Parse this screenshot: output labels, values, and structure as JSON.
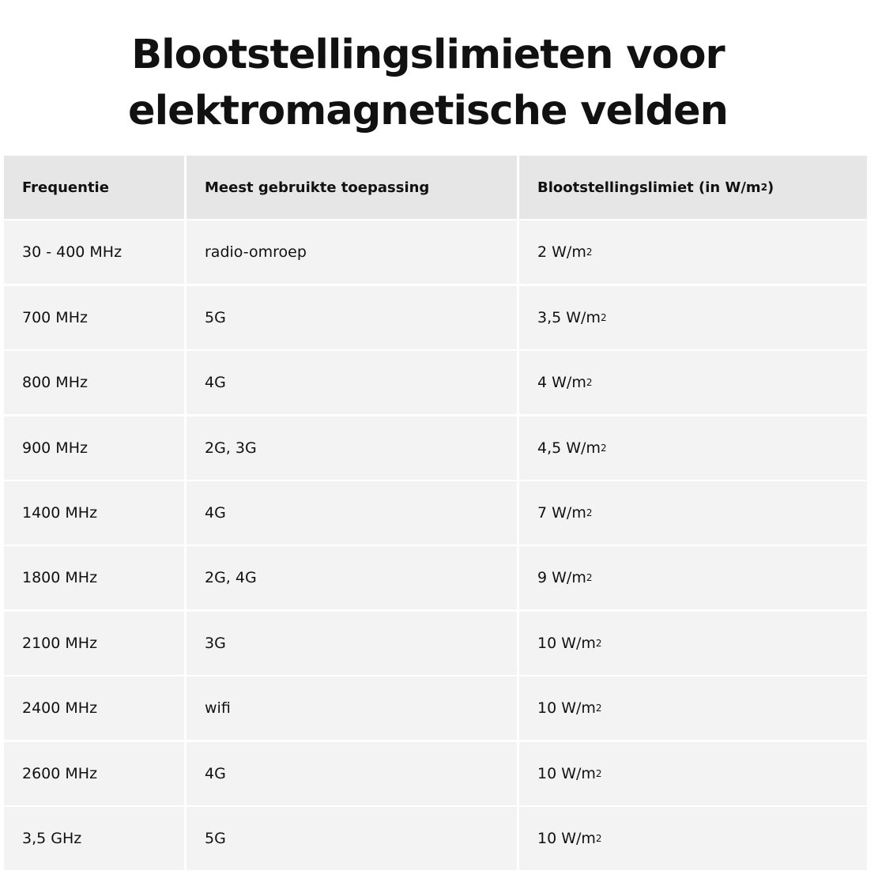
{
  "title": {
    "line1": "Blootstellingslimieten voor",
    "line2": "elektromagnetische velden"
  },
  "table": {
    "headers": [
      "Frequentie",
      "Meest gebruikte toepassing",
      "Blootstellingslimiet (in W/m²)"
    ],
    "rows": [
      [
        "30 - 400 MHz",
        "radio-omroep",
        "2 W/m²"
      ],
      [
        "700 MHz",
        "5G",
        "3,5 W/m²"
      ],
      [
        "800 MHz",
        "4G",
        "4 W/m²"
      ],
      [
        "900 MHz",
        "2G, 3G",
        "4,5 W/m²"
      ],
      [
        "1400 MHz",
        "4G",
        "7 W/m²"
      ],
      [
        "1800 MHz",
        "2G, 4G",
        "9 W/m²"
      ],
      [
        "2100 MHz",
        "3G",
        "10 W/m²"
      ],
      [
        "2400 MHz",
        "wifi",
        "10 W/m²"
      ],
      [
        "2600 MHz",
        "4G",
        "10 W/m²"
      ],
      [
        "3,5 GHz",
        "5G",
        "10 W/m²"
      ]
    ]
  },
  "colors": {
    "header_bg": "#e6e6e6",
    "cell_bg": "#f3f3f3"
  }
}
